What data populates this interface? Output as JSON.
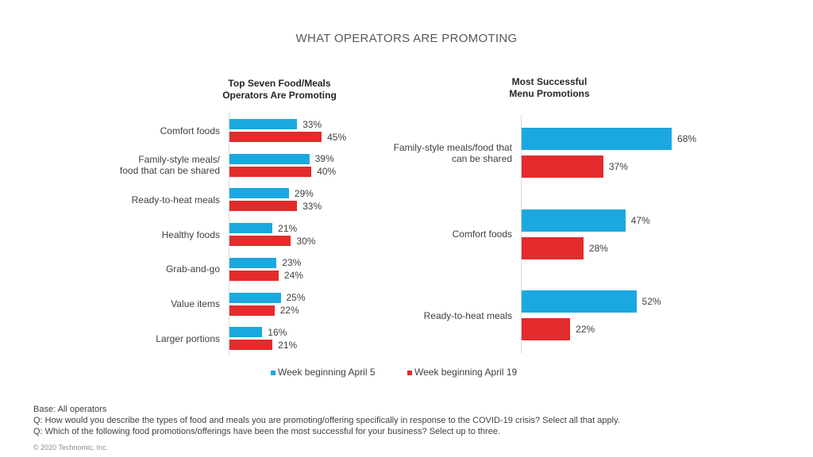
{
  "title": "WHAT OPERATORS ARE PROMOTING",
  "colors": {
    "series1": "#1ba8e0",
    "series2": "#e32b2b"
  },
  "chart_data": [
    {
      "type": "bar",
      "orientation": "horizontal",
      "title": "Top Seven Food/Meals Operators Are Promoting",
      "title_lines": [
        "Top Seven Food/Meals",
        "Operators Are Promoting"
      ],
      "categories": [
        "Comfort foods",
        "Family-style meals/ food that can be shared",
        "Ready-to-heat meals",
        "Healthy foods",
        "Grab-and-go",
        "Value items",
        "Larger portions"
      ],
      "category_lines": [
        [
          "Comfort foods"
        ],
        [
          "Family-style meals/",
          "food that can be shared"
        ],
        [
          "Ready-to-heat meals"
        ],
        [
          "Healthy foods"
        ],
        [
          "Grab-and-go"
        ],
        [
          "Value items"
        ],
        [
          "Larger portions"
        ]
      ],
      "series": [
        {
          "name": "Week beginning April 5",
          "values": [
            33,
            39,
            29,
            21,
            23,
            25,
            16
          ],
          "labels": [
            "33%",
            "39%",
            "29%",
            "21%",
            "23%",
            "25%",
            "16%"
          ]
        },
        {
          "name": "Week beginning April 19",
          "values": [
            45,
            40,
            33,
            30,
            24,
            22,
            21
          ],
          "labels": [
            "45%",
            "40%",
            "33%",
            "30%",
            "24%",
            "22%",
            "21%"
          ]
        }
      ],
      "xlim": [
        0,
        100
      ]
    },
    {
      "type": "bar",
      "orientation": "horizontal",
      "title": "Most Successful Menu Promotions",
      "title_lines": [
        "Most Successful",
        "Menu Promotions"
      ],
      "categories": [
        "Family-style meals/food that can be shared",
        "Comfort foods",
        "Ready-to-heat meals"
      ],
      "category_lines": [
        [
          "Family-style meals/food that",
          "can be shared"
        ],
        [
          "Comfort foods"
        ],
        [
          "Ready-to-heat meals"
        ]
      ],
      "series": [
        {
          "name": "Week beginning April 5",
          "values": [
            68,
            47,
            52
          ],
          "labels": [
            "68%",
            "47%",
            "52%"
          ]
        },
        {
          "name": "Week beginning April 19",
          "values": [
            37,
            28,
            22
          ],
          "labels": [
            "37%",
            "28%",
            "22%"
          ]
        }
      ],
      "xlim": [
        0,
        100
      ]
    }
  ],
  "legend": {
    "items": [
      "Week beginning April 5",
      "Week beginning April 19"
    ],
    "placement": "bottom"
  },
  "notes": {
    "base": "Base: All operators",
    "q1": "Q: How would you describe the types of food and meals you are promoting/offering specifically in response to the COVID-19 crisis? Select all that apply.",
    "q2": "Q: Which of the following food promotions/offerings have been the most successful for your business? Select up to three."
  },
  "copyright": "© 2020 Technomic, Inc."
}
